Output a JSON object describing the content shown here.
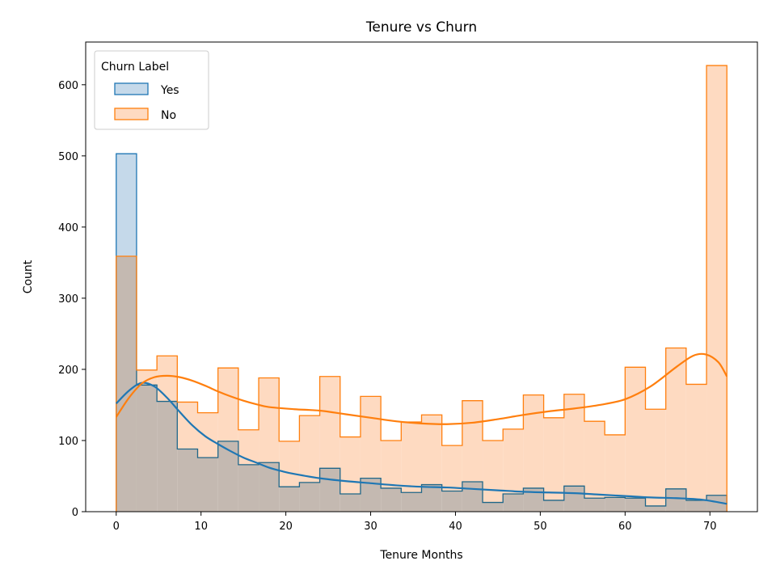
{
  "chart_data": {
    "type": "histogram",
    "title": "Tenure vs Churn",
    "xlabel": "Tenure Months",
    "ylabel": "Count",
    "xlim": [
      -3.6,
      75.6
    ],
    "ylim": [
      0,
      660
    ],
    "xticks": [
      0,
      10,
      20,
      30,
      40,
      50,
      60,
      70
    ],
    "yticks": [
      0,
      100,
      200,
      300,
      400,
      500,
      600
    ],
    "bin_edges": [
      0,
      2.4,
      4.8,
      7.2,
      9.6,
      12,
      14.4,
      16.8,
      19.2,
      21.6,
      24,
      26.4,
      28.8,
      31.2,
      33.6,
      36,
      38.4,
      40.8,
      43.2,
      45.6,
      48,
      50.4,
      52.8,
      55.2,
      57.6,
      60,
      62.4,
      64.8,
      67.2,
      69.6,
      72
    ],
    "legend": {
      "title": "Churn Label",
      "position": "upper left"
    },
    "grid": false,
    "series": [
      {
        "name": "Yes",
        "color": "#1f77b4",
        "fill": "#c5d9ea",
        "counts": [
          503,
          178,
          155,
          88,
          76,
          99,
          66,
          69,
          35,
          41,
          61,
          25,
          47,
          33,
          27,
          38,
          29,
          42,
          13,
          25,
          33,
          16,
          36,
          19,
          20,
          19,
          8,
          32,
          16,
          23
        ],
        "kde": [
          [
            0,
            152
          ],
          [
            1.5,
            170
          ],
          [
            3,
            181
          ],
          [
            4.5,
            176
          ],
          [
            6,
            160
          ],
          [
            7.5,
            140
          ],
          [
            9,
            121
          ],
          [
            10.5,
            106
          ],
          [
            12,
            95
          ],
          [
            13.5,
            85
          ],
          [
            15,
            76
          ],
          [
            16.5,
            69
          ],
          [
            18,
            62
          ],
          [
            19.5,
            57
          ],
          [
            21,
            53
          ],
          [
            24,
            47
          ],
          [
            27,
            43
          ],
          [
            30,
            40
          ],
          [
            33,
            37
          ],
          [
            36,
            35
          ],
          [
            39,
            34
          ],
          [
            42,
            32
          ],
          [
            45,
            30
          ],
          [
            48,
            28
          ],
          [
            51,
            27
          ],
          [
            54,
            26
          ],
          [
            57,
            24
          ],
          [
            60,
            22
          ],
          [
            63,
            20
          ],
          [
            66,
            19
          ],
          [
            69,
            17
          ],
          [
            72,
            11
          ]
        ]
      },
      {
        "name": "No",
        "color": "#ff7f0e",
        "fill": "#fedac1",
        "counts": [
          359,
          199,
          219,
          154,
          139,
          202,
          115,
          188,
          99,
          135,
          190,
          105,
          162,
          100,
          126,
          136,
          93,
          156,
          100,
          116,
          164,
          132,
          165,
          127,
          108,
          203,
          144,
          230,
          179,
          627
        ],
        "kde": [
          [
            0,
            133
          ],
          [
            1.5,
            160
          ],
          [
            3,
            180
          ],
          [
            4.5,
            189
          ],
          [
            6,
            191
          ],
          [
            7.5,
            189
          ],
          [
            9,
            184
          ],
          [
            10.5,
            177
          ],
          [
            12,
            169
          ],
          [
            13.5,
            162
          ],
          [
            15,
            156
          ],
          [
            16.5,
            151
          ],
          [
            18,
            147
          ],
          [
            21,
            144
          ],
          [
            24,
            142
          ],
          [
            27,
            137
          ],
          [
            30,
            132
          ],
          [
            33,
            127
          ],
          [
            36,
            124
          ],
          [
            39,
            123
          ],
          [
            42,
            125
          ],
          [
            45,
            130
          ],
          [
            48,
            136
          ],
          [
            51,
            141
          ],
          [
            54,
            145
          ],
          [
            57,
            150
          ],
          [
            60,
            158
          ],
          [
            63,
            176
          ],
          [
            66,
            203
          ],
          [
            68,
            219
          ],
          [
            69.5,
            221
          ],
          [
            71,
            210
          ],
          [
            72,
            190
          ]
        ]
      }
    ]
  }
}
